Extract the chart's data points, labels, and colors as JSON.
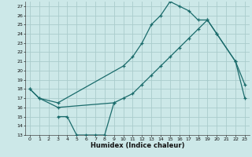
{
  "xlabel": "Humidex (Indice chaleur)",
  "background_color": "#cce8e8",
  "grid_color": "#aacccc",
  "line_color": "#1a6b6b",
  "xlim": [
    -0.5,
    23.5
  ],
  "ylim": [
    13,
    27.5
  ],
  "yticks": [
    13,
    14,
    15,
    16,
    17,
    18,
    19,
    20,
    21,
    22,
    23,
    24,
    25,
    26,
    27
  ],
  "xticks": [
    0,
    1,
    2,
    3,
    4,
    5,
    6,
    7,
    8,
    9,
    10,
    11,
    12,
    13,
    14,
    15,
    16,
    17,
    18,
    19,
    20,
    21,
    22,
    23
  ],
  "line1_x": [
    0,
    1,
    3,
    10,
    11,
    12,
    13,
    14,
    15,
    16,
    17,
    18,
    19,
    20,
    22,
    23
  ],
  "line1_y": [
    18,
    17,
    16.5,
    20.5,
    21.5,
    23,
    25,
    26,
    27.5,
    27,
    26.5,
    25.5,
    25.5,
    24,
    21,
    18.5
  ],
  "line2_x": [
    0,
    1,
    3,
    9,
    10,
    11,
    12,
    13,
    14,
    15,
    16,
    17,
    18,
    19,
    20,
    22,
    23
  ],
  "line2_y": [
    18,
    17,
    16,
    16.5,
    17,
    17.5,
    18.5,
    19.5,
    20.5,
    21.5,
    22.5,
    23.5,
    24.5,
    25.5,
    24,
    21,
    17
  ],
  "line3_x": [
    3,
    4,
    5,
    6,
    7,
    8,
    9
  ],
  "line3_y": [
    15,
    15,
    13,
    13,
    13,
    13,
    16.5
  ]
}
